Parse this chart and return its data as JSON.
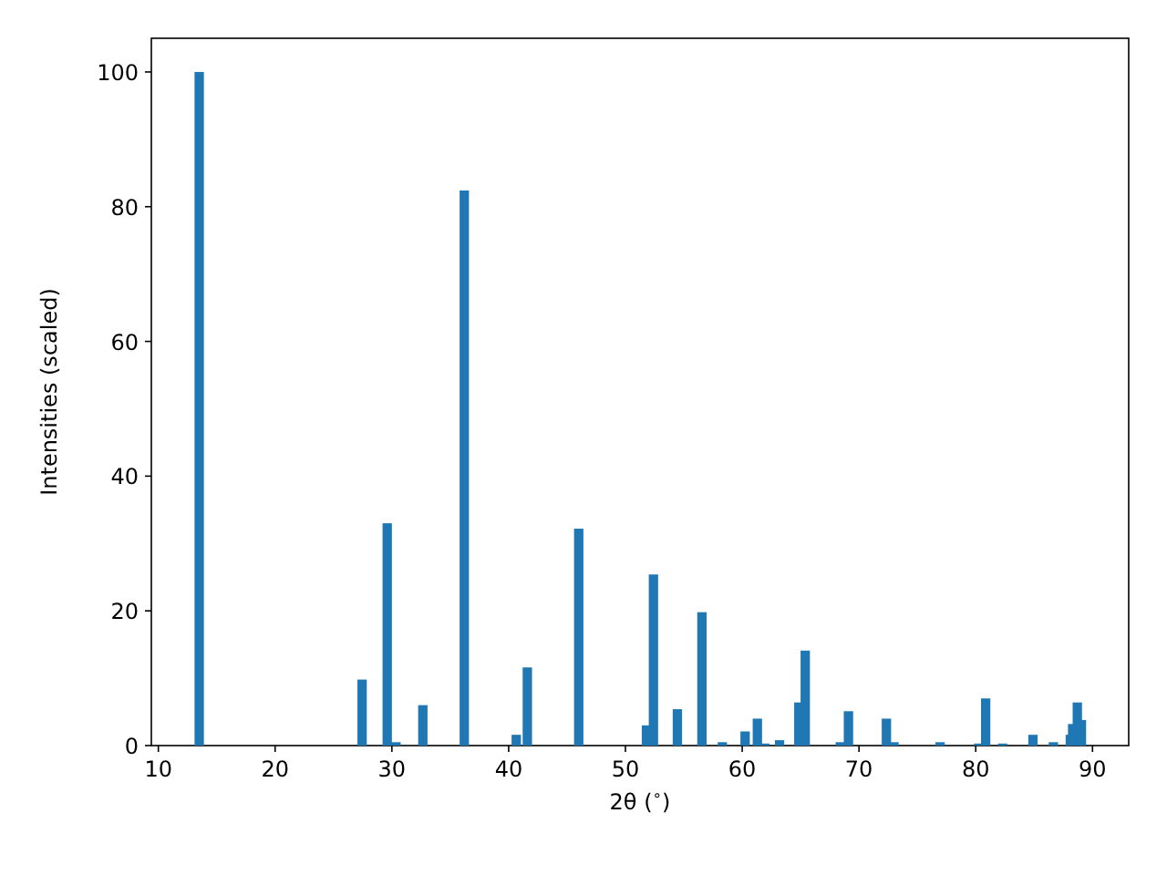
{
  "chart_data": {
    "type": "bar",
    "xlabel": "2θ ($^{∘}$)",
    "ylabel": "Intensities (scaled)",
    "color": "#1f77b4",
    "x": [
      13.5,
      27.45,
      29.6,
      30.35,
      32.65,
      36.2,
      40.65,
      41.6,
      46.0,
      51.8,
      52.4,
      54.45,
      56.55,
      58.3,
      60.25,
      61.3,
      61.95,
      63.2,
      64.85,
      65.4,
      68.4,
      69.1,
      72.35,
      73.0,
      76.95,
      80.25,
      80.85,
      82.3,
      84.9,
      86.65,
      88.1,
      88.3,
      88.7,
      89.05
    ],
    "values": [
      100,
      9.8,
      33,
      0.5,
      6,
      82.4,
      1.6,
      11.6,
      32.2,
      3,
      25.4,
      5.4,
      19.8,
      0.5,
      2.1,
      4.0,
      0.3,
      0.8,
      6.4,
      14.1,
      0.5,
      5.1,
      4.0,
      0.5,
      0.5,
      0.3,
      7.0,
      0.3,
      1.6,
      0.5,
      1.6,
      3.2,
      6.4,
      3.8
    ],
    "xlim": [
      9.4,
      93.1
    ],
    "ylim": [
      0,
      105
    ],
    "xticks": [
      10,
      20,
      30,
      40,
      50,
      60,
      70,
      80,
      90
    ],
    "yticks": [
      0,
      20,
      40,
      60,
      80,
      100
    ]
  }
}
